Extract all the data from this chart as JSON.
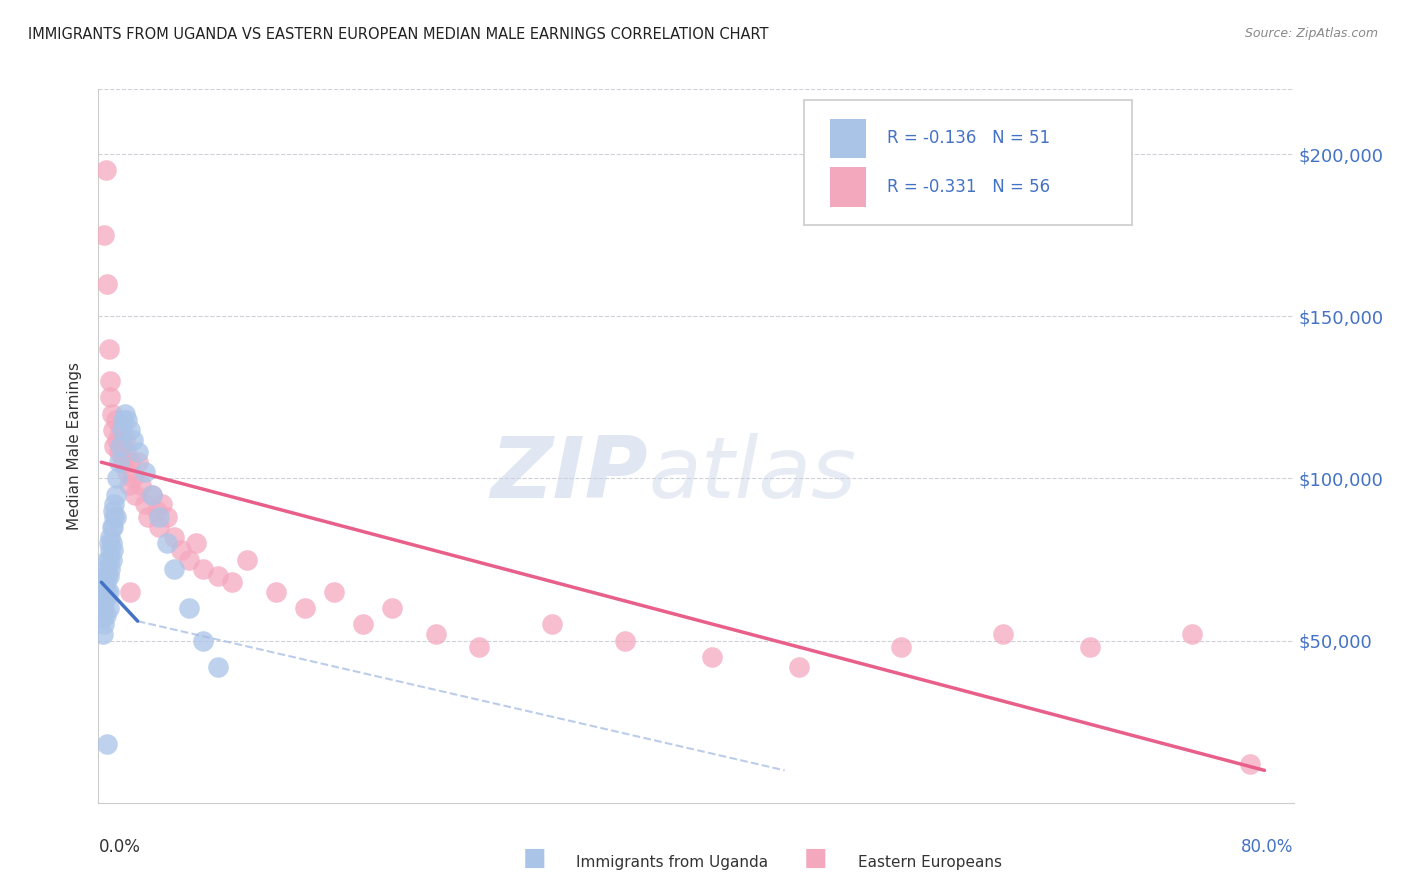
{
  "title": "IMMIGRANTS FROM UGANDA VS EASTERN EUROPEAN MEDIAN MALE EARNINGS CORRELATION CHART",
  "source": "Source: ZipAtlas.com",
  "ylabel": "Median Male Earnings",
  "ytick_labels": [
    "$50,000",
    "$100,000",
    "$150,000",
    "$200,000"
  ],
  "ytick_values": [
    50000,
    100000,
    150000,
    200000
  ],
  "ymin": 0,
  "ymax": 220000,
  "xmin": -0.002,
  "xmax": 0.82,
  "legend_r1": "R = -0.136",
  "legend_n1": "N = 51",
  "legend_r2": "R = -0.331",
  "legend_n2": "N = 56",
  "watermark_zip": "ZIP",
  "watermark_atlas": "atlas",
  "color_uganda": "#aac4e8",
  "color_eastern": "#f4a8be",
  "color_line_uganda": "#4472c4",
  "color_line_eastern": "#e8608a",
  "color_line_uganda_dashed": "#a0b8e0",
  "uganda_x": [
    0.001,
    0.001,
    0.001,
    0.002,
    0.002,
    0.002,
    0.002,
    0.003,
    0.003,
    0.003,
    0.003,
    0.004,
    0.004,
    0.004,
    0.005,
    0.005,
    0.005,
    0.005,
    0.005,
    0.006,
    0.006,
    0.006,
    0.007,
    0.007,
    0.007,
    0.008,
    0.008,
    0.008,
    0.009,
    0.009,
    0.01,
    0.01,
    0.011,
    0.012,
    0.013,
    0.014,
    0.015,
    0.016,
    0.018,
    0.02,
    0.022,
    0.025,
    0.03,
    0.035,
    0.04,
    0.045,
    0.05,
    0.06,
    0.07,
    0.08,
    0.004
  ],
  "uganda_y": [
    62000,
    57000,
    52000,
    70000,
    65000,
    60000,
    55000,
    72000,
    68000,
    63000,
    58000,
    75000,
    70000,
    65000,
    80000,
    75000,
    70000,
    65000,
    60000,
    82000,
    78000,
    72000,
    85000,
    80000,
    75000,
    90000,
    85000,
    78000,
    92000,
    88000,
    95000,
    88000,
    100000,
    105000,
    110000,
    115000,
    118000,
    120000,
    118000,
    115000,
    112000,
    108000,
    102000,
    95000,
    88000,
    80000,
    72000,
    60000,
    50000,
    42000,
    18000
  ],
  "eastern_x": [
    0.002,
    0.003,
    0.004,
    0.005,
    0.006,
    0.006,
    0.007,
    0.008,
    0.009,
    0.01,
    0.011,
    0.012,
    0.013,
    0.014,
    0.015,
    0.016,
    0.017,
    0.018,
    0.019,
    0.02,
    0.022,
    0.023,
    0.025,
    0.027,
    0.03,
    0.032,
    0.035,
    0.038,
    0.04,
    0.042,
    0.045,
    0.05,
    0.055,
    0.06,
    0.065,
    0.07,
    0.08,
    0.09,
    0.1,
    0.12,
    0.14,
    0.16,
    0.18,
    0.2,
    0.23,
    0.26,
    0.31,
    0.36,
    0.42,
    0.48,
    0.55,
    0.62,
    0.68,
    0.75,
    0.79,
    0.02
  ],
  "eastern_y": [
    175000,
    195000,
    160000,
    140000,
    130000,
    125000,
    120000,
    115000,
    110000,
    118000,
    112000,
    108000,
    115000,
    110000,
    105000,
    112000,
    108000,
    102000,
    98000,
    105000,
    100000,
    95000,
    105000,
    98000,
    92000,
    88000,
    95000,
    90000,
    85000,
    92000,
    88000,
    82000,
    78000,
    75000,
    80000,
    72000,
    70000,
    68000,
    75000,
    65000,
    60000,
    65000,
    55000,
    60000,
    52000,
    48000,
    55000,
    50000,
    45000,
    42000,
    48000,
    52000,
    48000,
    52000,
    12000,
    65000
  ]
}
